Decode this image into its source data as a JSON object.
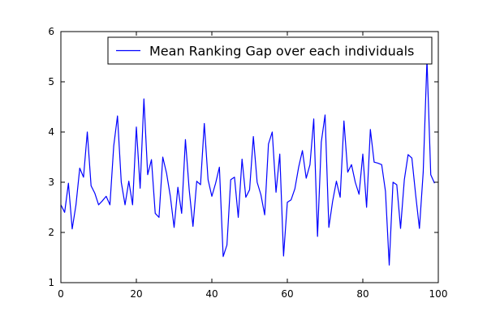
{
  "chart_data": {
    "type": "line",
    "title": "",
    "xlabel": "",
    "ylabel": "",
    "xlim": [
      0,
      100
    ],
    "ylim": [
      1,
      6
    ],
    "x_ticks": [
      0,
      20,
      40,
      60,
      80,
      100
    ],
    "y_ticks": [
      1,
      2,
      3,
      4,
      5,
      6
    ],
    "x_tick_labels": [
      "0",
      "20",
      "40",
      "60",
      "80",
      "100"
    ],
    "y_tick_labels": [
      "1",
      "2",
      "3",
      "4",
      "5",
      "6"
    ],
    "grid": false,
    "legend_position": "top-right",
    "series": [
      {
        "name": "Mean Ranking Gap over each individuals",
        "color": "#0000ff",
        "x": [
          0,
          1,
          2,
          3,
          4,
          5,
          6,
          7,
          8,
          9,
          10,
          11,
          12,
          13,
          14,
          15,
          16,
          17,
          18,
          19,
          20,
          21,
          22,
          23,
          24,
          25,
          26,
          27,
          28,
          29,
          30,
          31,
          32,
          33,
          34,
          35,
          36,
          37,
          38,
          39,
          40,
          41,
          42,
          43,
          44,
          45,
          46,
          47,
          48,
          49,
          50,
          51,
          52,
          53,
          54,
          55,
          56,
          57,
          58,
          59,
          60,
          61,
          62,
          63,
          64,
          65,
          66,
          67,
          68,
          69,
          70,
          71,
          72,
          73,
          74,
          75,
          76,
          77,
          78,
          79,
          80,
          81,
          82,
          83,
          84,
          85,
          86,
          87,
          88,
          89,
          90,
          91,
          92,
          93,
          94,
          95,
          96,
          97,
          98,
          99
        ],
        "values": [
          2.55,
          2.4,
          2.98,
          2.07,
          2.55,
          3.28,
          3.1,
          4.0,
          2.93,
          2.78,
          2.55,
          2.63,
          2.72,
          2.55,
          3.72,
          4.32,
          3.0,
          2.55,
          3.02,
          2.55,
          4.1,
          2.88,
          4.66,
          3.15,
          3.45,
          2.38,
          2.3,
          3.5,
          3.18,
          2.72,
          2.1,
          2.9,
          2.38,
          3.85,
          2.85,
          2.12,
          3.02,
          2.95,
          4.17,
          3.05,
          2.72,
          2.98,
          3.3,
          1.52,
          1.75,
          3.05,
          3.1,
          2.3,
          3.46,
          2.7,
          2.85,
          3.91,
          3.0,
          2.75,
          2.35,
          3.76,
          4.0,
          2.8,
          3.56,
          1.53,
          2.6,
          2.65,
          2.87,
          3.3,
          3.63,
          3.08,
          3.35,
          4.26,
          1.92,
          3.8,
          4.34,
          2.1,
          2.62,
          3.02,
          2.7,
          4.22,
          3.2,
          3.35,
          3.0,
          2.76,
          3.56,
          2.5,
          4.05,
          3.4,
          3.38,
          3.35,
          2.82,
          1.35,
          3.0,
          2.95,
          2.08,
          3.05,
          3.55,
          3.48,
          2.75,
          2.08,
          3.2,
          5.44,
          3.15,
          2.98
        ]
      }
    ]
  }
}
